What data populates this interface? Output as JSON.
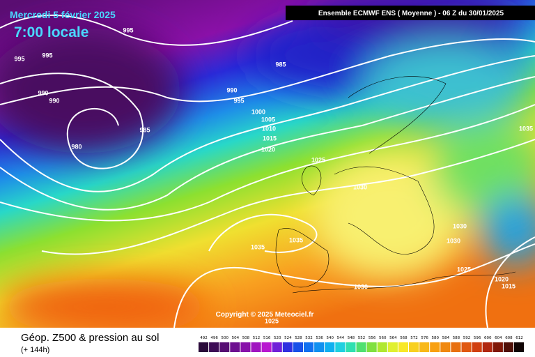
{
  "header": {
    "date": "Mercredi 5 février 2025",
    "time": "7:00 locale",
    "model": "Ensemble ECMWF ENS  ( Moyenne )  -  06 Z du 30/01/2025"
  },
  "isobar_labels": [
    "995",
    "995",
    "995",
    "985",
    "990",
    "995",
    "990",
    "990",
    "1000",
    "1005",
    "1010",
    "1015",
    "1020",
    "1025",
    "985",
    "980",
    "1030",
    "1035",
    "1030",
    "1030",
    "1035",
    "1035",
    "1025",
    "1020",
    "1015",
    "1030",
    "1025"
  ],
  "copyright": "Copyright © 2025 Meteociel.fr",
  "footer": {
    "title": "Géop. Z500 & pression au sol",
    "range": "(+ 144h)"
  },
  "scale": [
    "492",
    "496",
    "500",
    "504",
    "508",
    "512",
    "516",
    "520",
    "524",
    "528",
    "532",
    "536",
    "540",
    "544",
    "548",
    "552",
    "556",
    "560",
    "564",
    "568",
    "572",
    "576",
    "580",
    "584",
    "588",
    "592",
    "596",
    "600",
    "604",
    "608",
    "612"
  ]
}
